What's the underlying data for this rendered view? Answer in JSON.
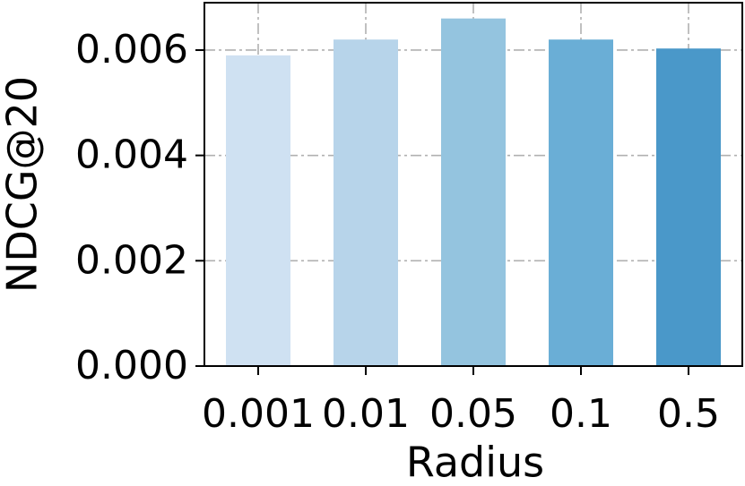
{
  "chart_data": {
    "type": "bar",
    "x_label": "Radius",
    "y_label": "NDCG@20",
    "categories": [
      "0.001",
      "0.01",
      "0.05",
      "0.1",
      "0.5"
    ],
    "values": [
      0.0059,
      0.0062,
      0.0066,
      0.0062,
      0.00603
    ],
    "colors": [
      "#cfe1f2",
      "#b7d4ea",
      "#94c4df",
      "#6aaed6",
      "#4a98c9"
    ],
    "ylim": [
      0,
      0.0069
    ],
    "yticks": [
      {
        "value": 0,
        "label": "0.000"
      },
      0.002,
      0.004,
      0.006
    ],
    "grid": true
  }
}
